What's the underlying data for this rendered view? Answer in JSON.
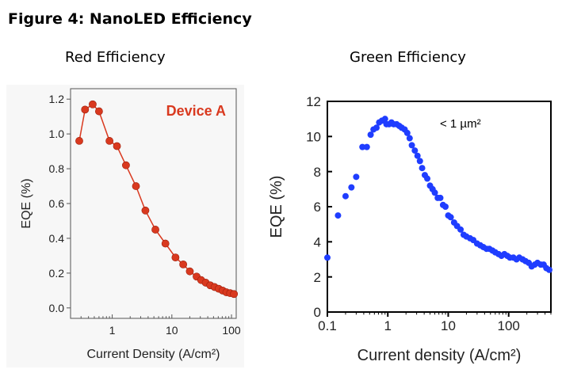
{
  "figure_title": "Figure 4: NanoLED Efficiency",
  "chart_data": [
    {
      "type": "line",
      "subtitle": "Red Efficiency",
      "annotation": "Device A",
      "xlabel": "Current Density (A/cm²)",
      "ylabel": "EQE (%)",
      "x_scale": "log",
      "xlim": [
        0.2,
        120
      ],
      "ylim": [
        -0.06,
        1.26
      ],
      "x_ticks": [
        1,
        10,
        100
      ],
      "x_tick_labels": [
        "1",
        "10",
        "100"
      ],
      "y_ticks": [
        0.0,
        0.2,
        0.4,
        0.6,
        0.8,
        1.0,
        1.2
      ],
      "y_tick_labels": [
        "0.0",
        "0.2",
        "0.4",
        "0.6",
        "0.8",
        "1.0",
        "1.2"
      ],
      "grid": false,
      "color": "#d9391f",
      "series": [
        {
          "x": [
            0.28,
            0.35,
            0.47,
            0.6,
            0.9,
            1.2,
            1.7,
            2.5,
            3.6,
            5.3,
            7.8,
            11.5,
            15.5,
            20,
            26,
            31,
            37,
            44,
            52,
            61,
            71,
            82,
            95,
            110
          ],
          "y": [
            0.96,
            1.14,
            1.17,
            1.13,
            0.96,
            0.93,
            0.82,
            0.7,
            0.56,
            0.45,
            0.37,
            0.29,
            0.25,
            0.21,
            0.18,
            0.16,
            0.145,
            0.13,
            0.12,
            0.11,
            0.1,
            0.09,
            0.085,
            0.08
          ]
        }
      ]
    },
    {
      "type": "scatter",
      "subtitle": "Green Efficiency",
      "annotation": "< 1 µm²",
      "xlabel": "Current density (A/cm²)",
      "ylabel": "EQE (%)",
      "x_scale": "log",
      "xlim": [
        0.1,
        500
      ],
      "ylim": [
        0,
        12
      ],
      "x_ticks": [
        0.1,
        1,
        10,
        100
      ],
      "x_tick_labels": [
        "0.1",
        "1",
        "10",
        "100"
      ],
      "y_ticks": [
        0,
        2,
        4,
        6,
        8,
        10,
        12
      ],
      "y_tick_labels": [
        "0",
        "2",
        "4",
        "6",
        "8",
        "10",
        "12"
      ],
      "grid": false,
      "color": "#1f3dff",
      "series": [
        {
          "x": [
            0.1,
            0.15,
            0.2,
            0.25,
            0.3,
            0.38,
            0.45,
            0.52,
            0.58,
            0.65,
            0.72,
            0.8,
            0.9,
            0.95,
            1.05,
            1.15,
            1.25,
            1.4,
            1.55,
            1.7,
            1.9,
            2.1,
            2.3,
            2.5,
            2.8,
            3.1,
            3.4,
            3.7,
            4.1,
            4.5,
            5.0,
            5.5,
            6.0,
            6.7,
            7.4,
            8.2,
            9.0,
            10,
            11,
            12.5,
            14,
            16,
            18,
            20,
            23,
            26,
            30,
            34,
            38,
            43,
            48,
            54,
            60,
            68,
            76,
            85,
            95,
            105,
            120,
            135,
            150,
            170,
            190,
            215,
            240,
            270,
            300,
            340,
            380,
            420,
            470
          ],
          "y": [
            3.1,
            5.5,
            6.6,
            7.1,
            7.7,
            9.4,
            9.4,
            10.1,
            10.4,
            10.5,
            10.8,
            10.9,
            11.0,
            10.7,
            10.7,
            10.8,
            10.7,
            10.7,
            10.6,
            10.5,
            10.4,
            10.2,
            9.9,
            9.5,
            9.2,
            8.9,
            8.6,
            8.2,
            7.8,
            7.6,
            7.2,
            7.0,
            6.8,
            6.5,
            6.5,
            6.1,
            6.0,
            5.5,
            5.4,
            5.1,
            4.9,
            4.7,
            4.4,
            4.3,
            4.2,
            4.1,
            3.9,
            3.8,
            3.7,
            3.6,
            3.6,
            3.5,
            3.4,
            3.3,
            3.2,
            3.3,
            3.2,
            3.1,
            3.1,
            3.0,
            3.1,
            3.0,
            2.9,
            2.8,
            2.6,
            2.7,
            2.8,
            2.7,
            2.7,
            2.5,
            2.4
          ]
        }
      ]
    }
  ]
}
